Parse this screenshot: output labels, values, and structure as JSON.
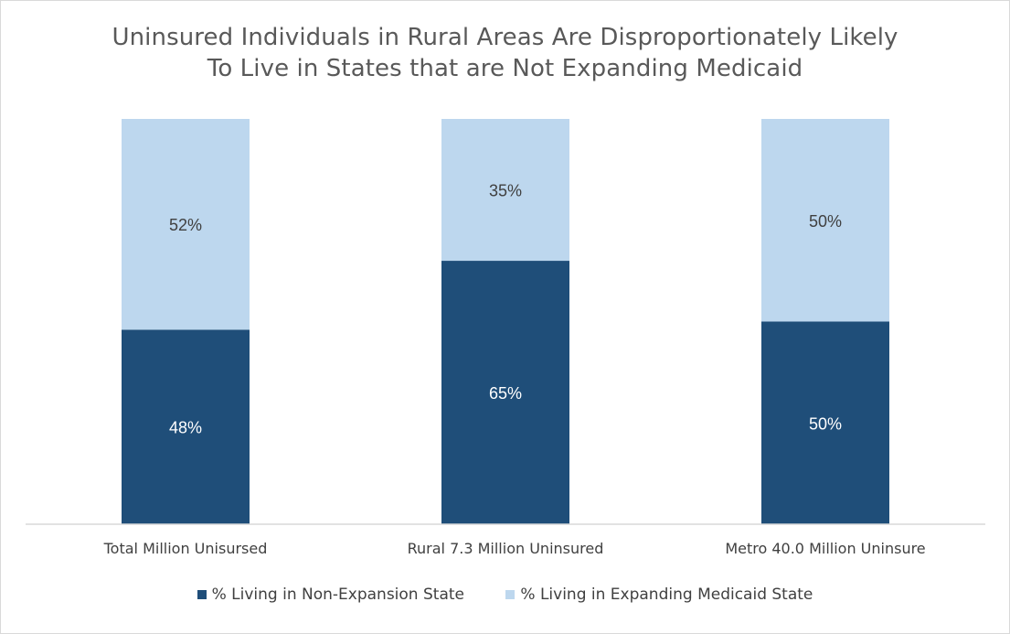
{
  "chart_data": {
    "type": "bar",
    "stacked": true,
    "percent_stacked": true,
    "title_lines": [
      "Uninsured Individuals in Rural Areas Are Disproportionately Likely",
      "To Live in States that are Not Expanding Medicaid"
    ],
    "categories": [
      "Total Million Unisursed",
      "Rural 7.3 Million Uninsured",
      "Metro 40.0 Million Uninsure"
    ],
    "series": [
      {
        "name": "% Living in Non-Expansion State",
        "values": [
          48,
          65,
          50
        ],
        "labels": [
          "48%",
          "65%",
          "50%"
        ],
        "color": "#1f4e79"
      },
      {
        "name": "% Living in Expanding Medicaid State",
        "values": [
          52,
          35,
          50
        ],
        "labels": [
          "52%",
          "35%",
          "50%"
        ],
        "color": "#bdd7ee"
      }
    ],
    "ylim": [
      0,
      100
    ],
    "grid": false,
    "legend_position": "bottom",
    "colors": {
      "axis_line": "#d9d9d9",
      "label_dark_text": "#ffffff",
      "label_light_text": "#404040",
      "category_text": "#404040"
    }
  }
}
